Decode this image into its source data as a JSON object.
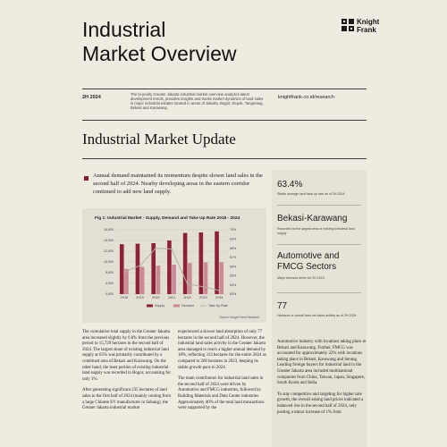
{
  "header": {
    "title_line1": "Industrial",
    "title_line2": "Market Overview",
    "logo_line1": "Knight",
    "logo_line2": "Frank",
    "date": "2H 2024",
    "intro": "The bi-yearly Greater Jakarta industrial market overview analyzes latest development trends, provides insights and tracks market dynamics of land sales in major industrial estates located in areas of Jakarta, Bogor, Depok, Tangerang, Bekasi and Karawang.",
    "website": "knightfrank.co.id/research"
  },
  "section": {
    "title": "Industrial Market Update",
    "lead": "Annual demand maintained its momentum despite slower land sales in the second half of 2024. Nearby developing areas in the eastern corridor continued to add new land supply."
  },
  "figure": {
    "title": "Fig 1: Industrial Market - Supply, Demand and Take Up Rate  2018 - 2024",
    "source": "Source: Knight Frank Research",
    "colors": {
      "supply": "#8c2236",
      "demand": "#c98a95",
      "take_up": "#b7b09f"
    }
  },
  "chart_data": {
    "type": "bar",
    "title": "Fig 1: Industrial Market - Supply, Demand and Take Up Rate  2018 - 2024",
    "categories": [
      "2H18",
      "2H19",
      "2H20",
      "2H21",
      "2H22",
      "2H23",
      "2H24"
    ],
    "y_ticks": [
      "4,000",
      "6,000",
      "8,000",
      "10,000",
      "12,000",
      "14,000",
      "16,000"
    ],
    "y2_ticks": [
      "63%",
      "64%",
      "65%",
      "66%",
      "67%",
      "68%",
      "69%",
      "70%"
    ],
    "ylim": [
      4000,
      16000
    ],
    "y2lim": [
      63,
      70
    ],
    "series": [
      {
        "name": "Supply",
        "values": [
          13300,
          13400,
          13500,
          14000,
          15400,
          15500,
          15700
        ]
      },
      {
        "name": "Demand",
        "values": [
          8700,
          9100,
          9300,
          9500,
          9800,
          9900,
          9950
        ]
      },
      {
        "name": "Take Up Rate",
        "values": [
          65.4,
          66.1,
          68.0,
          67.9,
          64.1,
          63.8,
          63.4
        ]
      }
    ],
    "legend_position": "bottom"
  },
  "stats": [
    {
      "value": "63.4%",
      "caption": "Stable average land take-up rate as of 2H 2024"
    },
    {
      "value": "Bekasi-Karawang",
      "caption": "Recorded as the largest area of existing industrial land supply"
    },
    {
      "value": "Automotive and FMCG Sectors",
      "caption": "Major demand driver for 2H 2024"
    },
    {
      "value": "77",
      "caption": "Hectares of overall land net sales activity as of 2H 2024"
    }
  ],
  "columns": [
    [
      "The cumulative total supply in the Greater Jakarta area increased slightly by 0.8% from the previous period to 15,729 hectares in the second half of 2024. The largest share of existing industrial land supply at 65% was primarily contributed by a combined area of Bekasi and Karawang. On the other hand, the least portion of existing industrial land supply was recorded in Bogor, accounting for only 1%.",
      "After generating significant 235 hectares of land sales in the first half of 2024 (mainly coming from a large Chinese EV manufacturer in Subang), the Greater Jakarta industrial market"
    ],
    [
      "experienced a slower land absorption of only 77 hectares in the second half of 2024. However, the industrial land sales activity in the Greater Jakarta area managed to reach a higher annual demand by 18%, reflecting 313 hectares for the entire 2024 as compared to 266 hectares in 2023, keeping its stable growth pace in 2024.",
      "The main contributors for industrial land sales in the second half of 2024 were driven by Automotive and FMCG industries, followed by Building Materials and Data Center industries. Approximately 40% of the total land transactions were supported by the"
    ],
    [
      "Automotive industry with locations taking place in Bekasi and Karawang. Further, FMCG was accounted for approximately 22% with locations taking place in Bekasi, Karawang and Serang. Leading foreign buyers for industrial land in the Greater Jakarta area included multinational companies from China, Taiwan, Japan, Singapore, South Korea and India.",
      "To stay competitive and targeting for higher sale growth, the overall asking land prices indicated a balanced rise in the second half of 2024, only posting a minor increase of 1% from"
    ]
  ]
}
